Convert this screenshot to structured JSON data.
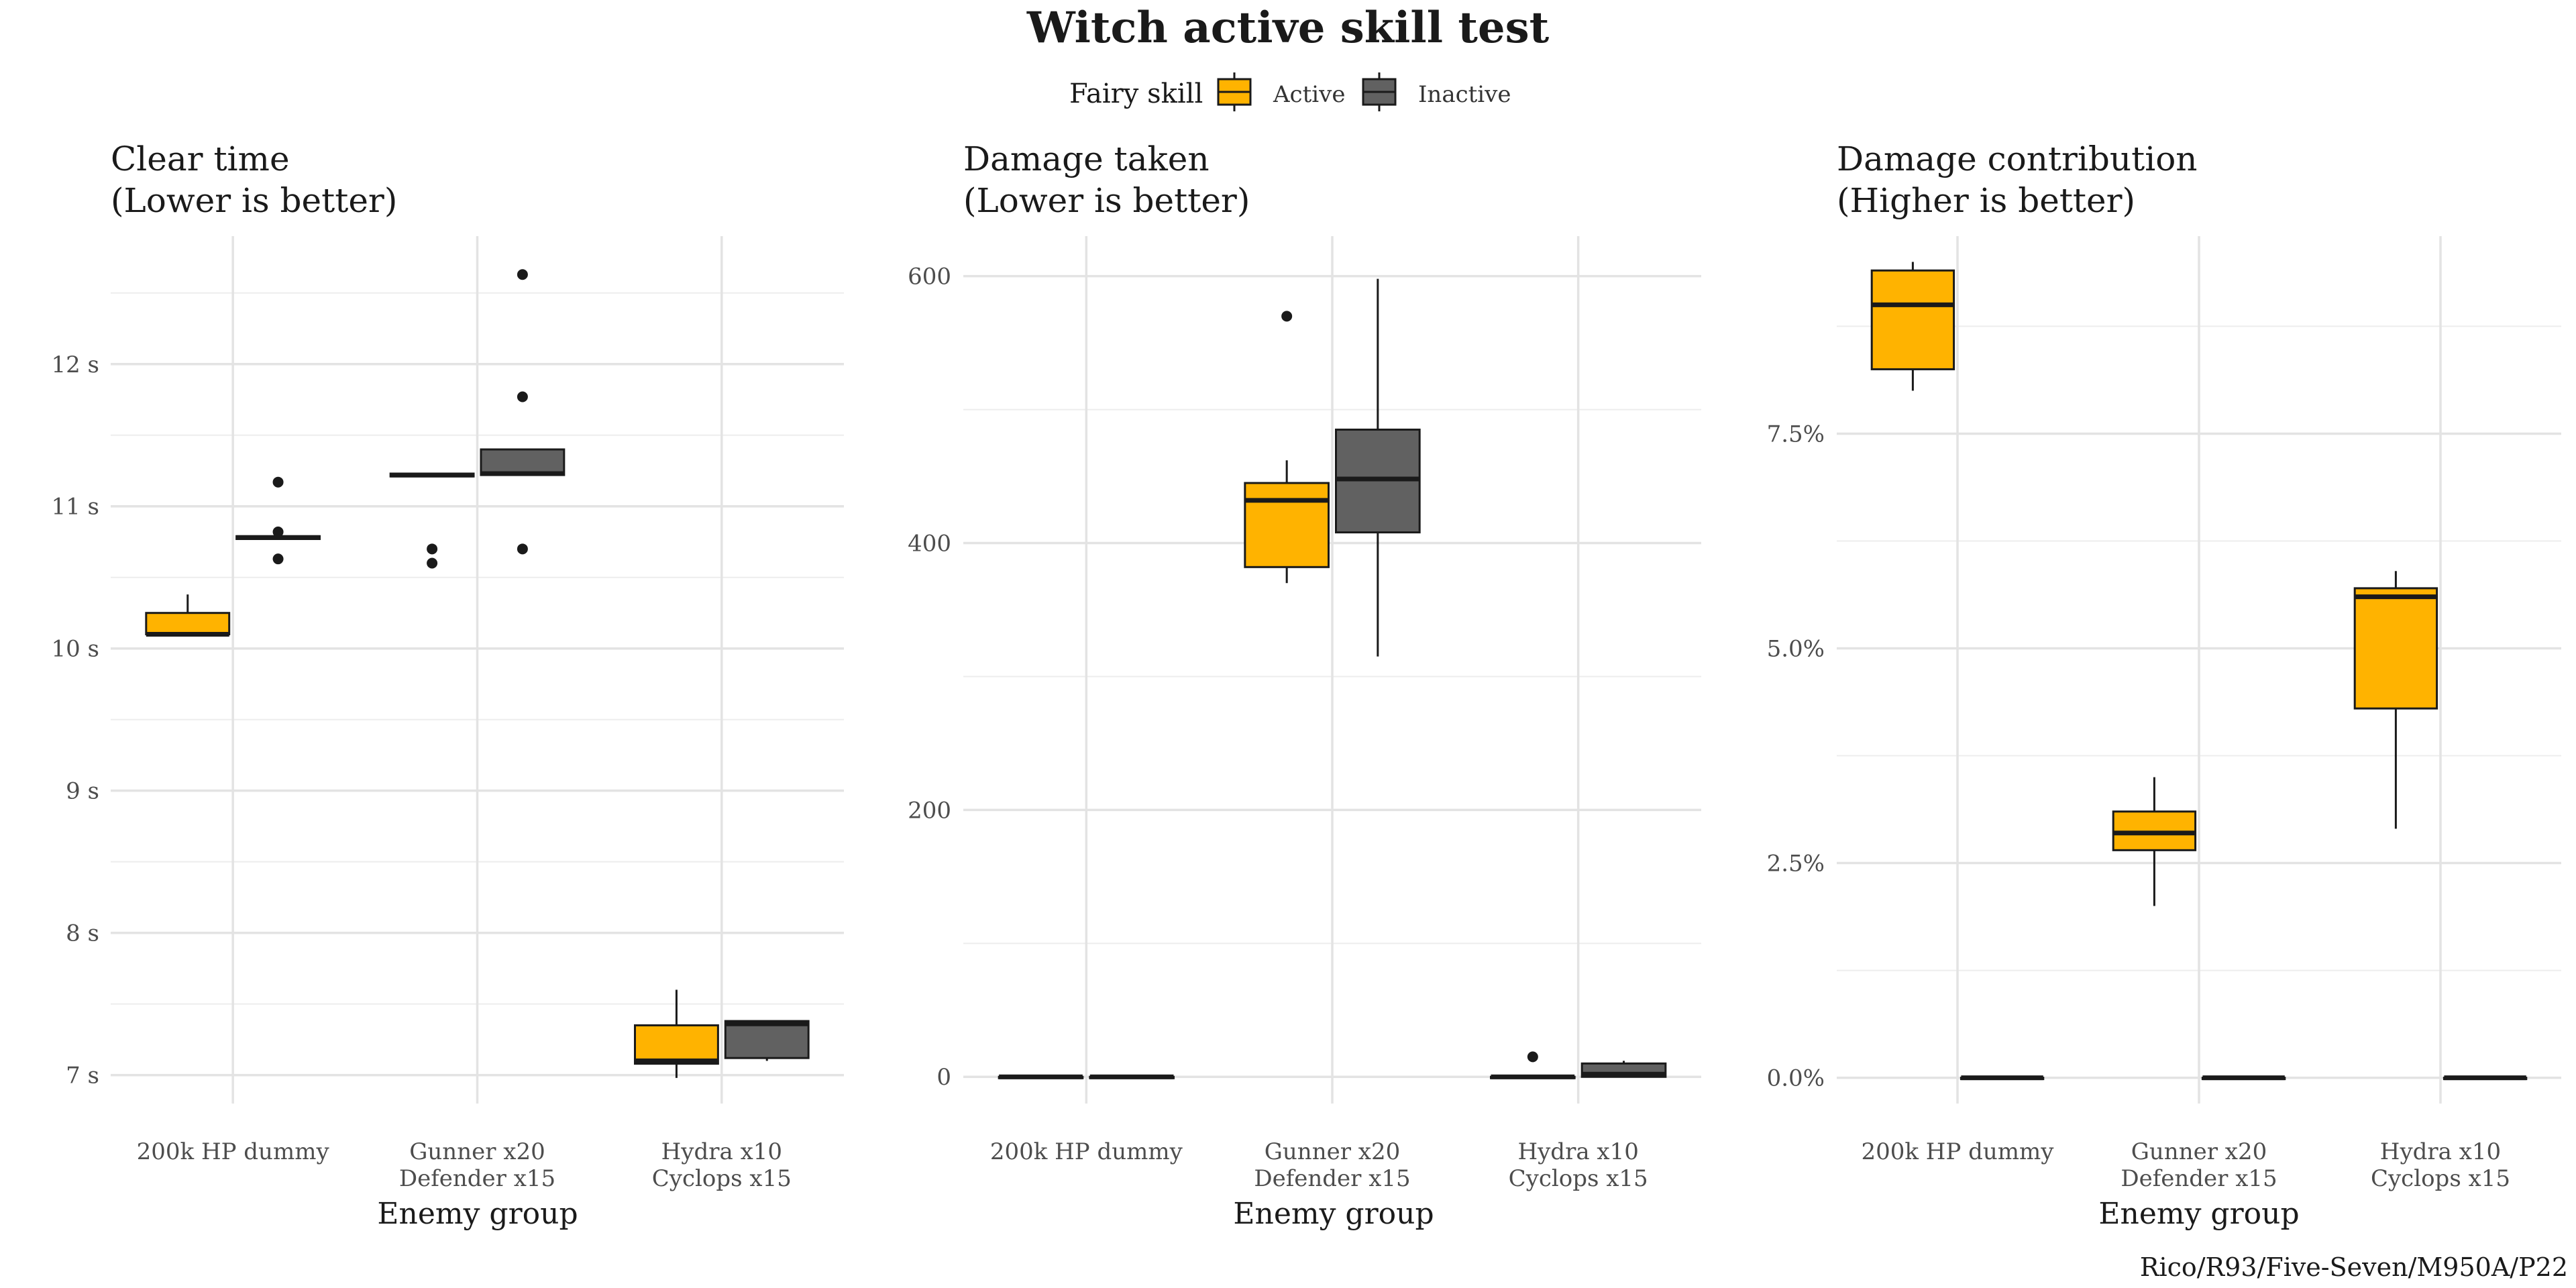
{
  "title": "Witch active skill test",
  "legend": {
    "title": "Fairy skill",
    "items": [
      {
        "label": "Active",
        "color": "#FFB300"
      },
      {
        "label": "Inactive",
        "color": "#616161"
      }
    ]
  },
  "caption": "Rico/R93/Five-Seven/M950A/P22",
  "chart_data": [
    {
      "type": "box",
      "title": "Clear time\n(Lower is better)",
      "xlabel": "Enemy group",
      "ylabel": "",
      "categories": [
        "200k HP dummy",
        "Gunner x20\nDefender x15",
        "Hydra x10\nCyclops x15"
      ],
      "ylim": [
        6.8,
        12.9
      ],
      "yticks": [
        {
          "v": 7,
          "label": "7 s"
        },
        {
          "v": 8,
          "label": "8 s"
        },
        {
          "v": 9,
          "label": "9 s"
        },
        {
          "v": 10,
          "label": "10 s"
        },
        {
          "v": 11,
          "label": "11 s"
        },
        {
          "v": 12,
          "label": "12 s"
        }
      ],
      "yminor": [
        7.5,
        8.5,
        9.5,
        10.5,
        11.5,
        12.5
      ],
      "series": [
        {
          "name": "Active",
          "boxes": [
            {
              "q1": 10.1,
              "median": 10.1,
              "q3": 10.25,
              "lower": 10.1,
              "upper": 10.38,
              "outliers": []
            },
            {
              "q1": 11.21,
              "median": 11.22,
              "q3": 11.23,
              "lower": 11.21,
              "upper": 11.23,
              "outliers": [
                10.6,
                10.7
              ]
            },
            {
              "q1": 7.08,
              "median": 7.1,
              "q3": 7.35,
              "lower": 6.98,
              "upper": 7.6,
              "outliers": []
            }
          ]
        },
        {
          "name": "Inactive",
          "boxes": [
            {
              "q1": 10.77,
              "median": 10.78,
              "q3": 10.79,
              "lower": 10.77,
              "upper": 10.79,
              "outliers": [
                10.63,
                10.82,
                11.17
              ]
            },
            {
              "q1": 11.22,
              "median": 11.23,
              "q3": 11.4,
              "lower": 11.22,
              "upper": 11.4,
              "outliers": [
                10.7,
                11.77,
                12.63
              ]
            },
            {
              "q1": 7.12,
              "median": 7.36,
              "q3": 7.38,
              "lower": 7.1,
              "upper": 7.38,
              "outliers": []
            }
          ]
        }
      ]
    },
    {
      "type": "box",
      "title": "Damage taken\n(Lower is better)",
      "xlabel": "Enemy group",
      "ylabel": "",
      "categories": [
        "200k HP dummy",
        "Gunner x20\nDefender x15",
        "Hydra x10\nCyclops x15"
      ],
      "ylim": [
        -20,
        630
      ],
      "yticks": [
        {
          "v": 0,
          "label": "0"
        },
        {
          "v": 200,
          "label": "200"
        },
        {
          "v": 400,
          "label": "400"
        },
        {
          "v": 600,
          "label": "600"
        }
      ],
      "yminor": [
        100,
        300,
        500
      ],
      "series": [
        {
          "name": "Active",
          "boxes": [
            {
              "q1": 0,
              "median": 0,
              "q3": 0,
              "lower": 0,
              "upper": 0,
              "outliers": []
            },
            {
              "q1": 382,
              "median": 432,
              "q3": 445,
              "lower": 370,
              "upper": 462,
              "outliers": [
                570
              ]
            },
            {
              "q1": 0,
              "median": 0,
              "q3": 0,
              "lower": 0,
              "upper": 0,
              "outliers": [
                15
              ]
            }
          ]
        },
        {
          "name": "Inactive",
          "boxes": [
            {
              "q1": 0,
              "median": 0,
              "q3": 0,
              "lower": 0,
              "upper": 0,
              "outliers": []
            },
            {
              "q1": 408,
              "median": 448,
              "q3": 485,
              "lower": 315,
              "upper": 598,
              "outliers": []
            },
            {
              "q1": 0,
              "median": 2,
              "q3": 10,
              "lower": 0,
              "upper": 12,
              "outliers": []
            }
          ]
        }
      ]
    },
    {
      "type": "box",
      "title": "Damage contribution\n(Higher is better)",
      "xlabel": "Enemy group",
      "ylabel": "",
      "categories": [
        "200k HP dummy",
        "Gunner x20\nDefender x15",
        "Hydra x10\nCyclops x15"
      ],
      "ylim": [
        -0.3,
        9.8
      ],
      "yticks": [
        {
          "v": 0,
          "label": "0.0%"
        },
        {
          "v": 2.5,
          "label": "2.5%"
        },
        {
          "v": 5,
          "label": "5.0%"
        },
        {
          "v": 7.5,
          "label": "7.5%"
        }
      ],
      "yminor": [
        1.25,
        3.75,
        6.25,
        8.75
      ],
      "series": [
        {
          "name": "Active",
          "boxes": [
            {
              "q1": 8.25,
              "median": 9.0,
              "q3": 9.4,
              "lower": 8.0,
              "upper": 9.5,
              "outliers": []
            },
            {
              "q1": 2.65,
              "median": 2.85,
              "q3": 3.1,
              "lower": 2.0,
              "upper": 3.5,
              "outliers": []
            },
            {
              "q1": 4.3,
              "median": 5.6,
              "q3": 5.7,
              "lower": 2.9,
              "upper": 5.9,
              "outliers": []
            }
          ]
        },
        {
          "name": "Inactive",
          "boxes": [
            {
              "q1": 0,
              "median": 0,
              "q3": 0,
              "lower": 0,
              "upper": 0,
              "outliers": []
            },
            {
              "q1": 0,
              "median": 0,
              "q3": 0,
              "lower": 0,
              "upper": 0,
              "outliers": []
            },
            {
              "q1": 0,
              "median": 0,
              "q3": 0,
              "lower": 0,
              "upper": 0,
              "outliers": []
            }
          ]
        }
      ]
    }
  ]
}
